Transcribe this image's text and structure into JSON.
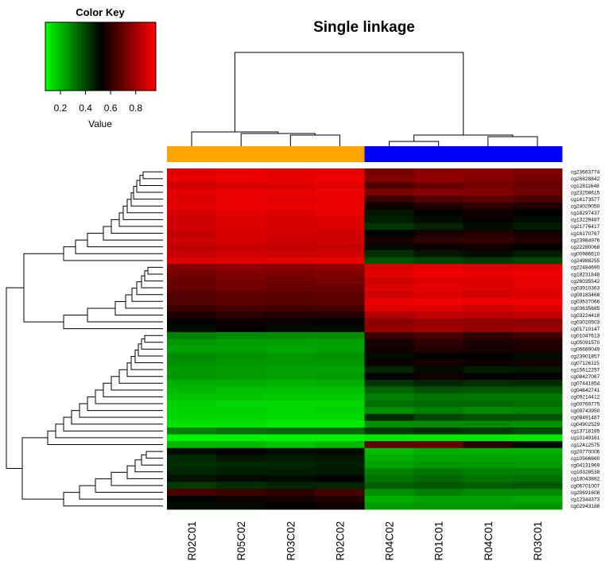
{
  "chart_data": {
    "type": "heatmap",
    "title": "Single linkage",
    "color_key": {
      "title": "Color Key",
      "xlabel": "Value",
      "ticks": [
        "0.2",
        "0.4",
        "0.6",
        "0.8"
      ],
      "tick_values": [
        0.2,
        0.4,
        0.6,
        0.8
      ],
      "range": [
        0.08,
        0.96
      ],
      "low_color": "#00ff00",
      "mid_color": "#000000",
      "high_color": "#ff0000"
    },
    "columns": [
      "R02C01",
      "R05C02",
      "R03C02",
      "R02C02",
      "R04C02",
      "R01C01",
      "R04C01",
      "R03C01"
    ],
    "column_groups": [
      "#ffa500",
      "#ffa500",
      "#ffa500",
      "#ffa500",
      "#0000ff",
      "#0000ff",
      "#0000ff",
      "#0000ff"
    ],
    "rows": [
      "cg23663774",
      "cg26828842",
      "cg12811648",
      "cg23258615",
      "cg16173577",
      "cg24029050",
      "cg18297437",
      "cg13229487",
      "cg21776417",
      "cg16170767",
      "cg23984976",
      "cg22280068",
      "cg00986610",
      "cg24988255",
      "cg22484690",
      "cg18231848",
      "cg26035542",
      "cg03910363",
      "cg09183468",
      "cg03637066",
      "cg03635685",
      "cg03224418",
      "cg03020503",
      "cg01710147",
      "cg01047613",
      "cg05091570",
      "cg06689049",
      "cg23901857",
      "cg07126115",
      "cg15612257",
      "cg08427067",
      "cg07441854",
      "cg04642741",
      "cg09214412",
      "cg00769775",
      "cg09743950",
      "cg08491487",
      "cg04902529",
      "cg13718185",
      "cg10149161",
      "cg12412575",
      "cg20770006",
      "cg10566660",
      "cg04131969",
      "cg10328538",
      "cg18043882",
      "cg06701007",
      "cg20691608",
      "cg12344373",
      "cg02943188"
    ],
    "values": [
      [
        0.9,
        0.92,
        0.91,
        0.92,
        0.72,
        0.76,
        0.76,
        0.74
      ],
      [
        0.92,
        0.93,
        0.92,
        0.93,
        0.74,
        0.77,
        0.75,
        0.72
      ],
      [
        0.88,
        0.9,
        0.9,
        0.91,
        0.66,
        0.7,
        0.72,
        0.7
      ],
      [
        0.91,
        0.92,
        0.92,
        0.93,
        0.73,
        0.75,
        0.74,
        0.71
      ],
      [
        0.9,
        0.92,
        0.91,
        0.92,
        0.62,
        0.66,
        0.68,
        0.65
      ],
      [
        0.91,
        0.93,
        0.92,
        0.93,
        0.55,
        0.58,
        0.6,
        0.57
      ],
      [
        0.89,
        0.91,
        0.9,
        0.92,
        0.48,
        0.52,
        0.55,
        0.52
      ],
      [
        0.87,
        0.9,
        0.89,
        0.9,
        0.47,
        0.5,
        0.53,
        0.5
      ],
      [
        0.88,
        0.9,
        0.89,
        0.9,
        0.42,
        0.46,
        0.5,
        0.47
      ],
      [
        0.86,
        0.89,
        0.88,
        0.88,
        0.52,
        0.56,
        0.58,
        0.55
      ],
      [
        0.87,
        0.89,
        0.87,
        0.88,
        0.56,
        0.6,
        0.61,
        0.58
      ],
      [
        0.85,
        0.87,
        0.86,
        0.86,
        0.5,
        0.54,
        0.55,
        0.52
      ],
      [
        0.86,
        0.88,
        0.87,
        0.88,
        0.44,
        0.48,
        0.5,
        0.47
      ],
      [
        0.9,
        0.91,
        0.91,
        0.92,
        0.38,
        0.4,
        0.42,
        0.4
      ],
      [
        0.74,
        0.76,
        0.75,
        0.76,
        0.9,
        0.92,
        0.9,
        0.91
      ],
      [
        0.72,
        0.74,
        0.73,
        0.74,
        0.91,
        0.93,
        0.92,
        0.93
      ],
      [
        0.7,
        0.72,
        0.71,
        0.72,
        0.88,
        0.9,
        0.9,
        0.92
      ],
      [
        0.7,
        0.72,
        0.7,
        0.7,
        0.9,
        0.92,
        0.9,
        0.91
      ],
      [
        0.66,
        0.68,
        0.67,
        0.68,
        0.87,
        0.9,
        0.88,
        0.9
      ],
      [
        0.66,
        0.68,
        0.67,
        0.68,
        0.92,
        0.94,
        0.93,
        0.94
      ],
      [
        0.62,
        0.64,
        0.63,
        0.64,
        0.9,
        0.9,
        0.88,
        0.9
      ],
      [
        0.57,
        0.59,
        0.58,
        0.58,
        0.82,
        0.85,
        0.84,
        0.86
      ],
      [
        0.52,
        0.54,
        0.53,
        0.52,
        0.76,
        0.78,
        0.77,
        0.76
      ],
      [
        0.5,
        0.52,
        0.5,
        0.5,
        0.78,
        0.8,
        0.78,
        0.79
      ],
      [
        0.3,
        0.28,
        0.28,
        0.28,
        0.62,
        0.64,
        0.6,
        0.63
      ],
      [
        0.26,
        0.25,
        0.24,
        0.24,
        0.56,
        0.6,
        0.57,
        0.58
      ],
      [
        0.24,
        0.24,
        0.23,
        0.24,
        0.55,
        0.58,
        0.56,
        0.57
      ],
      [
        0.28,
        0.27,
        0.26,
        0.27,
        0.5,
        0.52,
        0.52,
        0.5
      ],
      [
        0.27,
        0.26,
        0.26,
        0.26,
        0.54,
        0.56,
        0.54,
        0.55
      ],
      [
        0.25,
        0.25,
        0.24,
        0.24,
        0.46,
        0.5,
        0.47,
        0.48
      ],
      [
        0.26,
        0.25,
        0.24,
        0.25,
        0.52,
        0.55,
        0.52,
        0.52
      ],
      [
        0.22,
        0.22,
        0.21,
        0.22,
        0.43,
        0.46,
        0.44,
        0.45
      ],
      [
        0.2,
        0.19,
        0.19,
        0.19,
        0.35,
        0.38,
        0.37,
        0.37
      ],
      [
        0.18,
        0.18,
        0.17,
        0.17,
        0.3,
        0.32,
        0.31,
        0.31
      ],
      [
        0.16,
        0.15,
        0.15,
        0.15,
        0.33,
        0.34,
        0.34,
        0.33
      ],
      [
        0.16,
        0.16,
        0.15,
        0.16,
        0.27,
        0.3,
        0.28,
        0.29
      ],
      [
        0.15,
        0.15,
        0.14,
        0.14,
        0.45,
        0.4,
        0.38,
        0.38
      ],
      [
        0.13,
        0.13,
        0.12,
        0.12,
        0.27,
        0.28,
        0.28,
        0.27
      ],
      [
        0.3,
        0.33,
        0.34,
        0.34,
        0.42,
        0.44,
        0.42,
        0.4
      ],
      [
        0.1,
        0.1,
        0.1,
        0.1,
        0.12,
        0.12,
        0.12,
        0.12
      ],
      [
        0.2,
        0.2,
        0.18,
        0.2,
        0.68,
        0.7,
        0.6,
        0.5
      ],
      [
        0.5,
        0.52,
        0.5,
        0.5,
        0.2,
        0.22,
        0.22,
        0.22
      ],
      [
        0.45,
        0.48,
        0.47,
        0.48,
        0.22,
        0.24,
        0.24,
        0.24
      ],
      [
        0.44,
        0.45,
        0.46,
        0.47,
        0.24,
        0.26,
        0.26,
        0.25
      ],
      [
        0.46,
        0.47,
        0.47,
        0.48,
        0.3,
        0.32,
        0.3,
        0.3
      ],
      [
        0.49,
        0.5,
        0.5,
        0.52,
        0.32,
        0.34,
        0.32,
        0.33
      ],
      [
        0.42,
        0.44,
        0.46,
        0.46,
        0.36,
        0.37,
        0.36,
        0.37
      ],
      [
        0.65,
        0.62,
        0.6,
        0.64,
        0.27,
        0.3,
        0.28,
        0.28
      ],
      [
        0.52,
        0.55,
        0.56,
        0.58,
        0.22,
        0.24,
        0.24,
        0.23
      ],
      [
        0.5,
        0.5,
        0.52,
        0.54,
        0.25,
        0.26,
        0.26,
        0.26
      ]
    ]
  }
}
